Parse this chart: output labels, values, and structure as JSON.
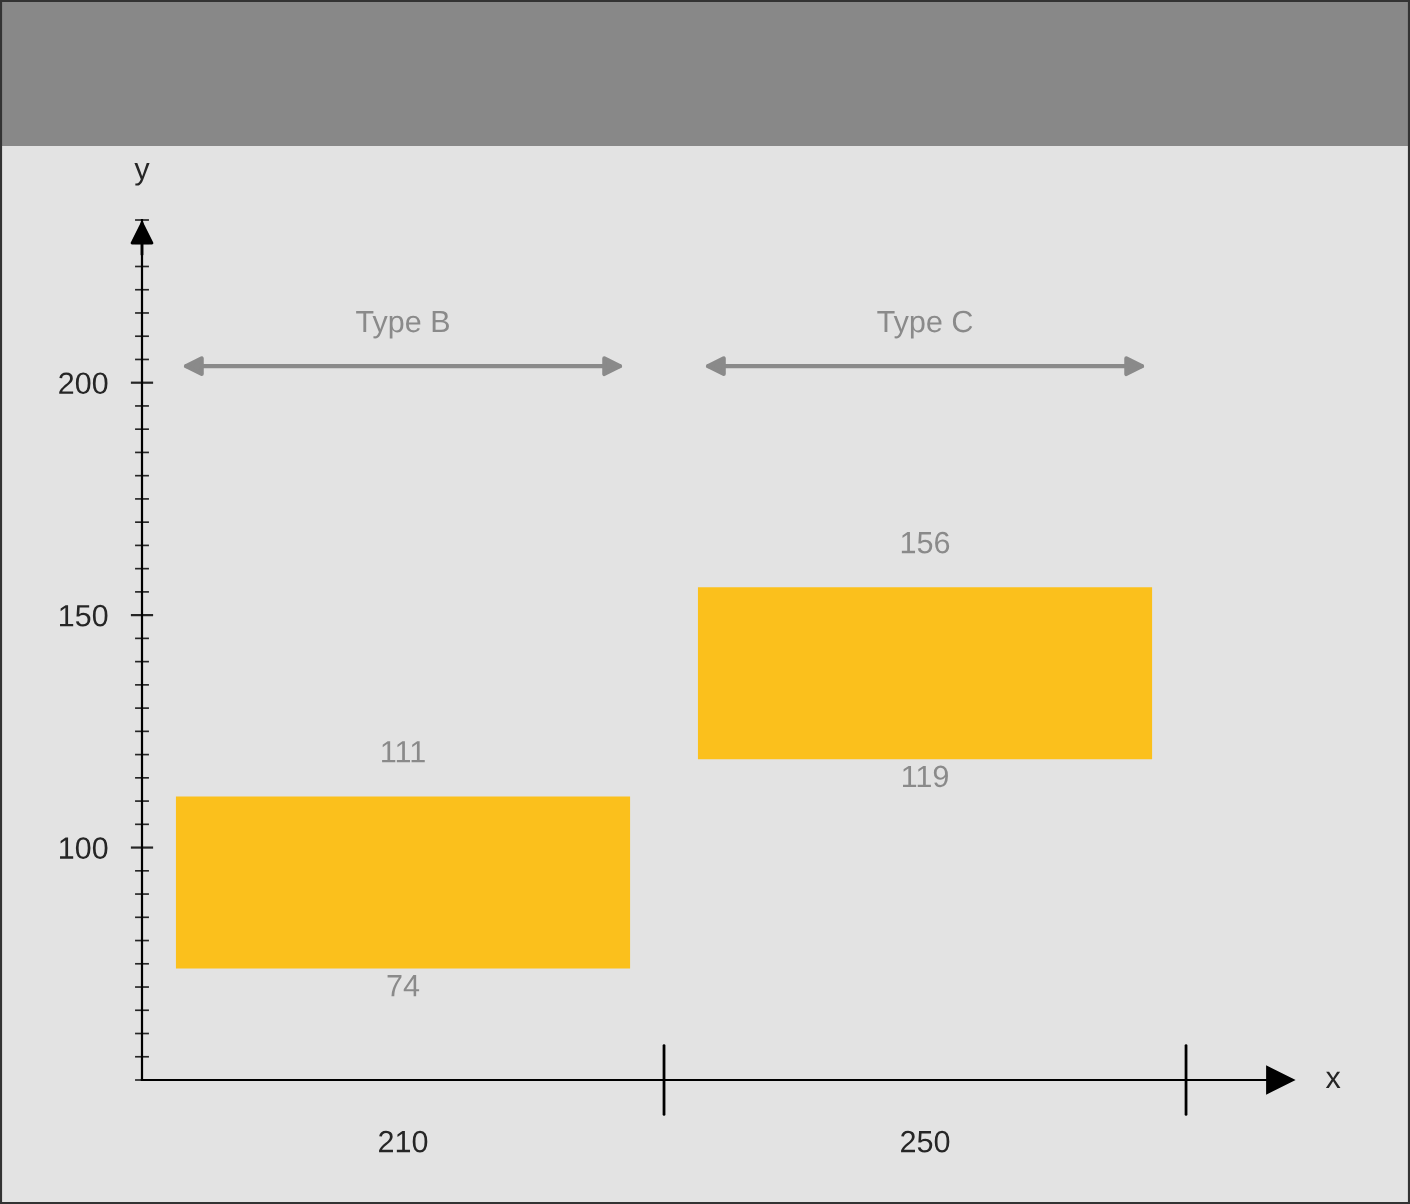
{
  "chart_data": {
    "type": "bar",
    "xlabel": "x",
    "ylabel": "y",
    "categories": [
      "210",
      "250"
    ],
    "values": [
      37,
      37
    ],
    "base": [
      74,
      119
    ],
    "color": "#fbc01c",
    "ylim": [
      50,
      235
    ],
    "yticks": [
      100,
      150,
      200
    ],
    "grid": false,
    "annotations": [
      {
        "text": "111",
        "x": "210",
        "y": 111
      },
      {
        "text": "74",
        "x": "210",
        "y": 74
      },
      {
        "text": "156",
        "x": "250",
        "y": 156
      },
      {
        "text": "119",
        "x": "250",
        "y": 119
      },
      "Type B",
      "Type C"
    ]
  }
}
